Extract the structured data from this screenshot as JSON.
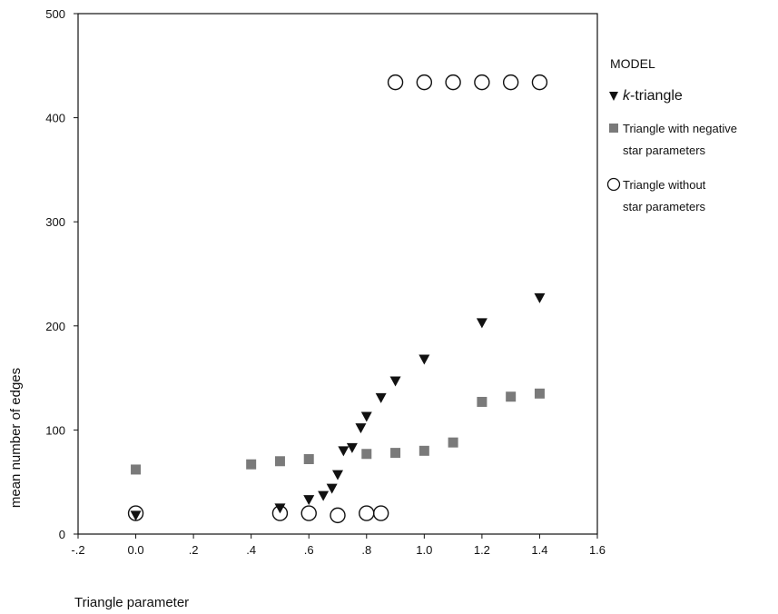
{
  "chart_data": {
    "type": "scatter",
    "xlabel": "Triangle parameter",
    "ylabel": "mean number of edges",
    "xlim": [
      -0.2,
      1.6
    ],
    "ylim": [
      0,
      500
    ],
    "x_ticks": [
      -0.2,
      0.0,
      0.2,
      0.4,
      0.6,
      0.8,
      1.0,
      1.2,
      1.4,
      1.6
    ],
    "x_tick_labels": [
      "-.2",
      "0.0",
      ".2",
      ".4",
      ".6",
      ".8",
      "1.0",
      "1.2",
      "1.4",
      "1.6"
    ],
    "y_ticks": [
      0,
      100,
      200,
      300,
      400,
      500
    ],
    "y_tick_labels": [
      "0",
      "100",
      "200",
      "300",
      "400",
      "500"
    ],
    "grid": false,
    "legend_title": "MODEL",
    "legend_position": "right",
    "series": [
      {
        "key": "k",
        "name_prefix": "k",
        "name_suffix": "-triangle",
        "marker": "triangle-down",
        "color": "#111111",
        "points": [
          [
            0.0,
            18
          ],
          [
            0.5,
            25
          ],
          [
            0.6,
            33
          ],
          [
            0.65,
            37
          ],
          [
            0.68,
            44
          ],
          [
            0.7,
            57
          ],
          [
            0.72,
            80
          ],
          [
            0.75,
            83
          ],
          [
            0.78,
            102
          ],
          [
            0.8,
            113
          ],
          [
            0.85,
            131
          ],
          [
            0.9,
            147
          ],
          [
            1.0,
            168
          ],
          [
            1.2,
            203
          ],
          [
            1.4,
            227
          ]
        ]
      },
      {
        "key": "neg",
        "name_line1": "Triangle with negative",
        "name_line2": "star parameters",
        "marker": "square",
        "color": "#7a7a7a",
        "points": [
          [
            0.0,
            62
          ],
          [
            0.4,
            67
          ],
          [
            0.5,
            70
          ],
          [
            0.6,
            72
          ],
          [
            0.8,
            77
          ],
          [
            0.9,
            78
          ],
          [
            1.0,
            80
          ],
          [
            1.1,
            88
          ],
          [
            1.2,
            127
          ],
          [
            1.3,
            132
          ],
          [
            1.4,
            135
          ]
        ]
      },
      {
        "key": "nostar",
        "name_line1": "Triangle without",
        "name_line2": "star parameters",
        "marker": "circle-open",
        "color": "#111111",
        "points": [
          [
            0.0,
            20
          ],
          [
            0.5,
            20
          ],
          [
            0.6,
            20
          ],
          [
            0.7,
            18
          ],
          [
            0.8,
            20
          ],
          [
            0.85,
            20
          ],
          [
            0.9,
            434
          ],
          [
            1.0,
            434
          ],
          [
            1.1,
            434
          ],
          [
            1.2,
            434
          ],
          [
            1.3,
            434
          ],
          [
            1.4,
            434
          ]
        ]
      }
    ]
  }
}
